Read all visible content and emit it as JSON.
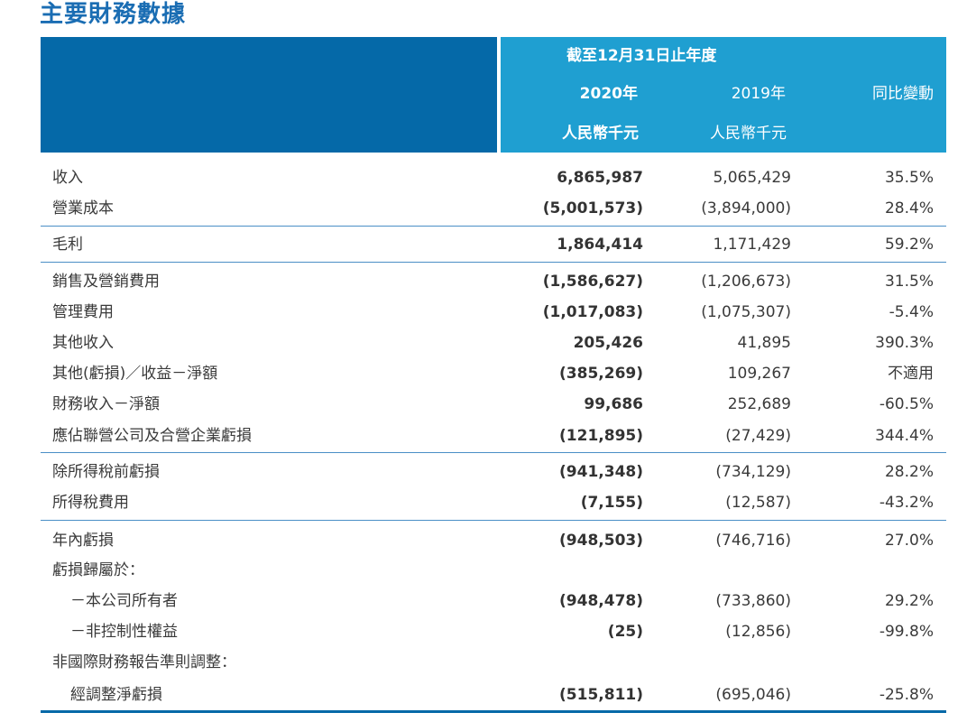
{
  "title": "主要財務數據",
  "header": {
    "period": "截至12月31日止年度",
    "col_2020": "2020年",
    "col_2019": "2019年",
    "col_yoy": "同比變動",
    "unit_2020": "人民幣千元",
    "unit_2019": "人民幣千元"
  },
  "rows": [
    {
      "label": "收入",
      "v2020": "6,865,987",
      "v2019": "5,065,429",
      "yoy": "35.5%"
    },
    {
      "label": "營業成本",
      "v2020": "(5,001,573)",
      "v2019": "(3,894,000)",
      "yoy": "28.4%"
    },
    {
      "label": "毛利",
      "v2020": "1,864,414",
      "v2019": "1,171,429",
      "yoy": "59.2%"
    },
    {
      "label": "銷售及營銷費用",
      "v2020": "(1,586,627)",
      "v2019": "(1,206,673)",
      "yoy": "31.5%"
    },
    {
      "label": "管理費用",
      "v2020": "(1,017,083)",
      "v2019": "(1,075,307)",
      "yoy": "-5.4%"
    },
    {
      "label": "其他收入",
      "v2020": "205,426",
      "v2019": "41,895",
      "yoy": "390.3%"
    },
    {
      "label": "其他(虧損)／收益－淨額",
      "v2020": "(385,269)",
      "v2019": "109,267",
      "yoy": "不適用"
    },
    {
      "label": "財務收入－淨額",
      "v2020": "99,686",
      "v2019": "252,689",
      "yoy": "-60.5%"
    },
    {
      "label": "應佔聯營公司及合營企業虧損",
      "v2020": "(121,895)",
      "v2019": "(27,429)",
      "yoy": "344.4%"
    },
    {
      "label": "除所得稅前虧損",
      "v2020": "(941,348)",
      "v2019": "(734,129)",
      "yoy": "28.2%"
    },
    {
      "label": "所得稅費用",
      "v2020": "(7,155)",
      "v2019": "(12,587)",
      "yoy": "-43.2%"
    },
    {
      "label": "年內虧損",
      "v2020": "(948,503)",
      "v2019": "(746,716)",
      "yoy": "27.0%"
    },
    {
      "label": "虧損歸屬於：",
      "v2020": "",
      "v2019": "",
      "yoy": ""
    },
    {
      "label": "－本公司所有者",
      "v2020": "(948,478)",
      "v2019": "(733,860)",
      "yoy": "29.2%"
    },
    {
      "label": "－非控制性權益",
      "v2020": "(25)",
      "v2019": "(12,856)",
      "yoy": "-99.8%"
    },
    {
      "label": "非國際財務報告準則調整：",
      "v2020": "",
      "v2019": "",
      "yoy": ""
    },
    {
      "label": "經調整淨虧損",
      "v2020": "(515,811)",
      "v2019": "(695,046)",
      "yoy": "-25.8%"
    }
  ]
}
